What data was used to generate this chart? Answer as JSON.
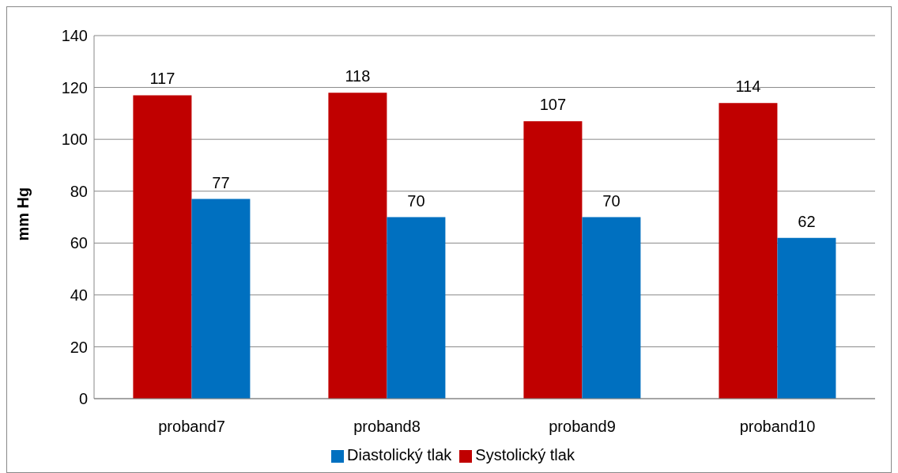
{
  "chart_data": {
    "type": "bar",
    "ylabel": "mm Hg",
    "categories": [
      "proband7",
      "proband8",
      "proband9",
      "proband10"
    ],
    "series": [
      {
        "name": "Systolický tlak",
        "color": "#c00000",
        "values": [
          117,
          118,
          107,
          114
        ]
      },
      {
        "name": "Diastolický tlak",
        "color": "#0070c0",
        "values": [
          77,
          70,
          70,
          62
        ]
      }
    ],
    "ylim": [
      0,
      140
    ],
    "yticks": [
      0,
      20,
      40,
      60,
      80,
      100,
      120,
      140
    ],
    "grid": "y",
    "legend": "bottom",
    "data_labels": true
  }
}
